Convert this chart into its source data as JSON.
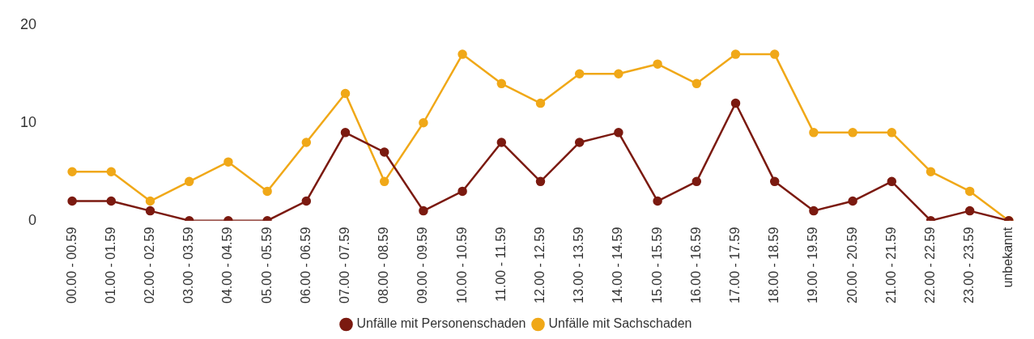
{
  "chart_data": {
    "type": "line",
    "categories": [
      "00.00 - 00.59",
      "01.00 - 01.59",
      "02.00 - 02.59",
      "03.00 - 03.59",
      "04.00 - 04.59",
      "05.00 - 05.59",
      "06.00 - 06.59",
      "07.00 - 07.59",
      "08.00 - 08.59",
      "09.00 - 09.59",
      "10.00 - 10.59",
      "11.00 - 11.59",
      "12.00 - 12.59",
      "13.00 - 13.59",
      "14.00 - 14.59",
      "15.00 - 15.59",
      "16.00 - 16.59",
      "17.00 - 17.59",
      "18.00 - 18.59",
      "19.00 - 19.59",
      "20.00 - 20.59",
      "21.00 - 21.59",
      "22.00 - 22.59",
      "23.00 - 23.59",
      "unbekannt"
    ],
    "series": [
      {
        "name": "Unfälle mit Personenschaden",
        "color": "#7b1a10",
        "values": [
          2,
          2,
          1,
          0,
          0,
          0,
          2,
          9,
          7,
          1,
          3,
          8,
          4,
          8,
          9,
          2,
          4,
          12,
          4,
          1,
          2,
          4,
          0,
          1,
          0
        ]
      },
      {
        "name": "Unfälle mit Sachschaden",
        "color": "#f0a818",
        "values": [
          5,
          5,
          2,
          4,
          6,
          3,
          8,
          13,
          4,
          10,
          17,
          14,
          12,
          15,
          15,
          16,
          14,
          17,
          17,
          9,
          9,
          9,
          5,
          3,
          0
        ]
      }
    ],
    "ylim": [
      0,
      20
    ],
    "yticks": [
      0,
      10,
      20
    ],
    "grid": false,
    "legend": "bottom",
    "marker": "circle",
    "line_style": "solid"
  }
}
